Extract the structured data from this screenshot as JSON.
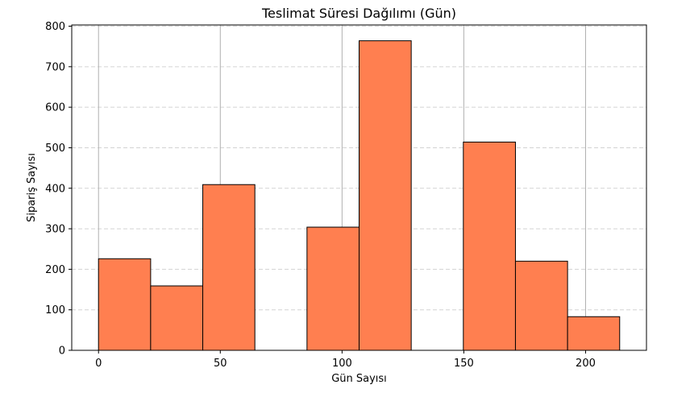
{
  "chart_data": {
    "type": "bar",
    "subtype": "histogram",
    "title": "Teslimat Süresi Dağılımı (Gün)",
    "xlabel": "Gün Sayısı",
    "ylabel": "Sipariş Sayısı",
    "xlim": [
      -11,
      225
    ],
    "ylim": [
      0,
      803
    ],
    "xticks": [
      0,
      50,
      100,
      150,
      200
    ],
    "yticks": [
      0,
      100,
      200,
      300,
      400,
      500,
      600,
      700,
      800
    ],
    "bins": [
      {
        "start": 0,
        "end": 21.4,
        "value": 226
      },
      {
        "start": 21.4,
        "end": 42.8,
        "value": 159
      },
      {
        "start": 42.8,
        "end": 64.2,
        "value": 409
      },
      {
        "start": 64.2,
        "end": 85.6,
        "value": 0
      },
      {
        "start": 85.6,
        "end": 107,
        "value": 304
      },
      {
        "start": 107,
        "end": 128.4,
        "value": 764
      },
      {
        "start": 128.4,
        "end": 149.8,
        "value": 0
      },
      {
        "start": 149.8,
        "end": 171.2,
        "value": 514
      },
      {
        "start": 171.2,
        "end": 192.6,
        "value": 220
      },
      {
        "start": 192.6,
        "end": 214,
        "value": 83
      }
    ],
    "grid": {
      "x": true,
      "y": true,
      "y_style": "dashed"
    },
    "colors": {
      "bar_fill": "#ff7f50",
      "bar_edge": "#000000",
      "x_grid": "#b0b0b0",
      "y_grid": "#d3d3d3"
    }
  }
}
